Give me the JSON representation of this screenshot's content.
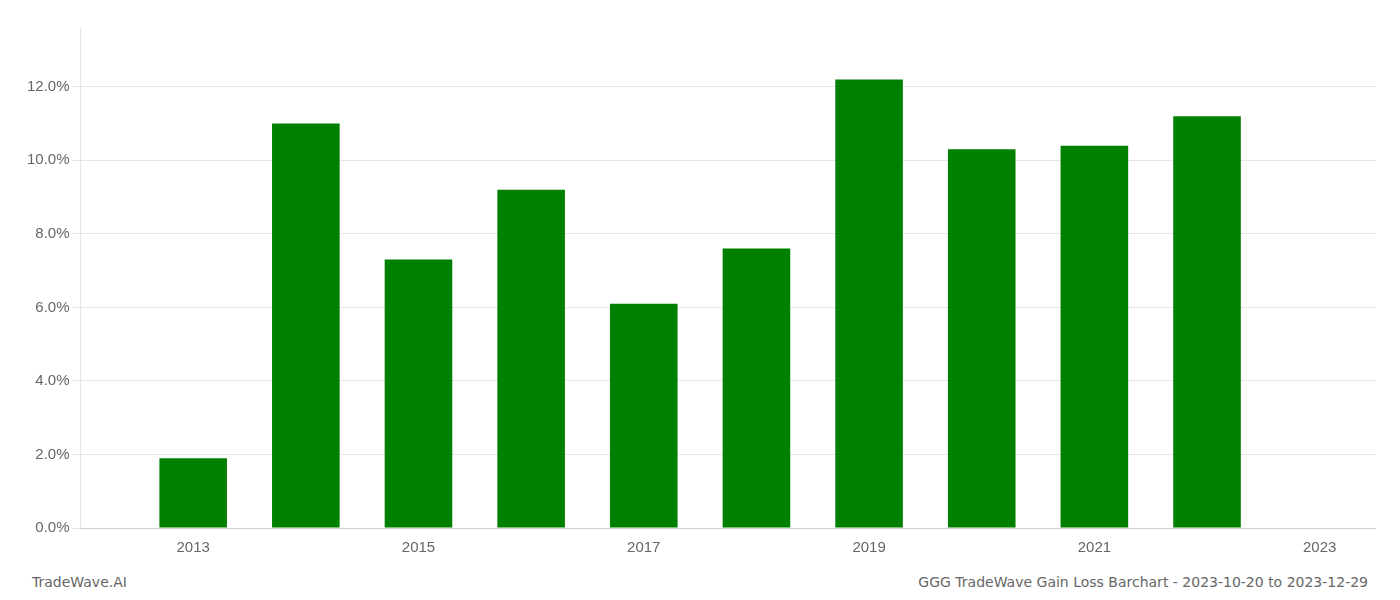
{
  "chart_data": {
    "type": "bar",
    "x": [
      2013,
      2014,
      2015,
      2016,
      2017,
      2018,
      2019,
      2020,
      2021,
      2022
    ],
    "values": [
      0.019,
      0.11,
      0.073,
      0.092,
      0.061,
      0.076,
      0.122,
      0.103,
      0.104,
      0.112
    ],
    "color": "#008000",
    "xlim": [
      2012.0,
      2023.5
    ],
    "xticks": [
      2013,
      2015,
      2017,
      2019,
      2021,
      2023
    ],
    "ylim": [
      0,
      0.136
    ],
    "yticks": [
      {
        "value": 0.0,
        "label": "0.0%"
      },
      {
        "value": 0.02,
        "label": "2.0%"
      },
      {
        "value": 0.04,
        "label": "4.0%"
      },
      {
        "value": 0.06,
        "label": "6.0%"
      },
      {
        "value": 0.08,
        "label": "8.0%"
      },
      {
        "value": 0.1,
        "label": "10.0%"
      },
      {
        "value": 0.12,
        "label": "12.0%"
      }
    ],
    "grid": true,
    "annotations": [
      "TradeWave.AI",
      "GGG TradeWave Gain Loss Barchart - 2023-10-20 to 2023-12-29"
    ]
  }
}
